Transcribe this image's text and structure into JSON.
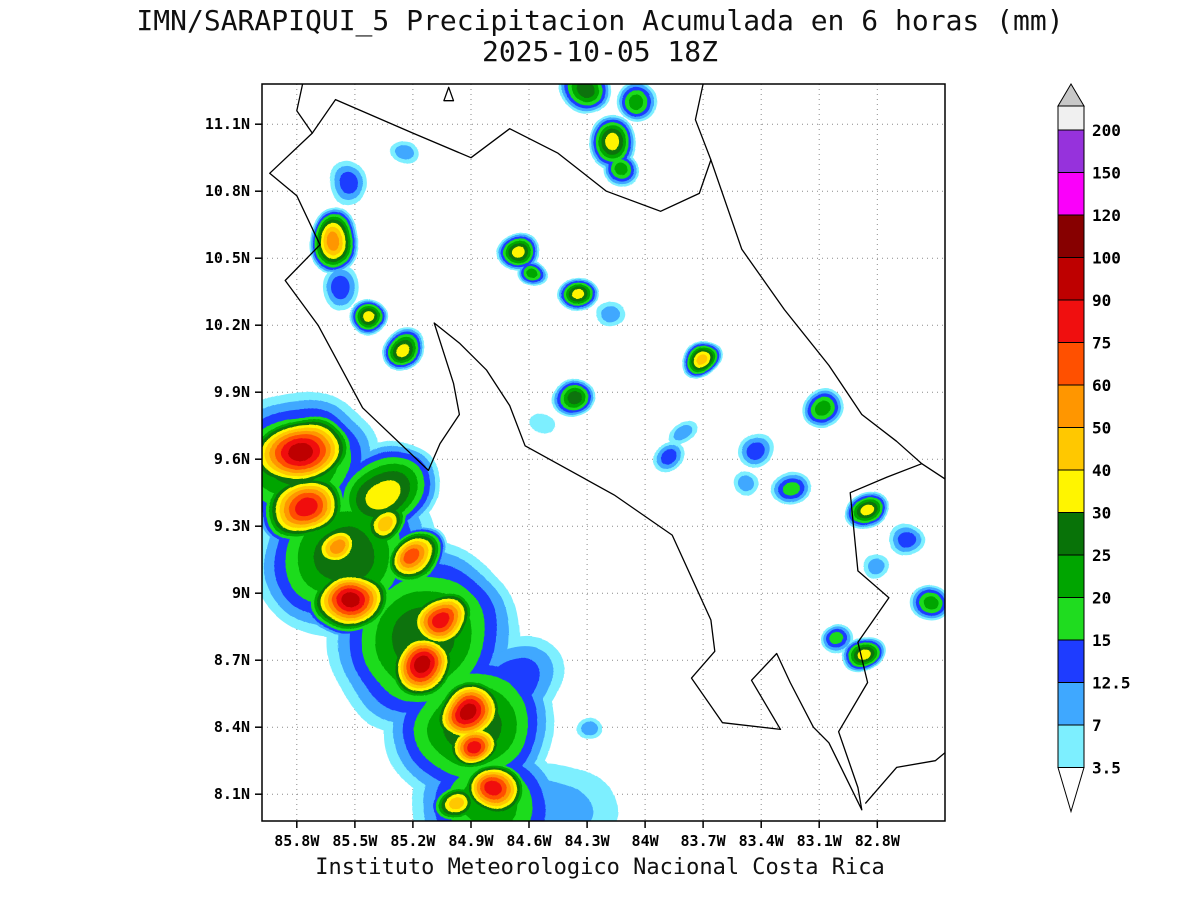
{
  "title": {
    "line1": "IMN/SARAPIQUI_5 Precipitacion Acumulada en 6 horas (mm)",
    "line2": "2025-10-05 18Z"
  },
  "footer": "Instituto Meteorologico Nacional Costa Rica",
  "axes": {
    "lat_tick_labels": [
      "11.1N",
      "10.8N",
      "10.5N",
      "10.2N",
      "9.9N",
      "9.6N",
      "9.3N",
      "9N",
      "8.7N",
      "8.4N",
      "8.1N"
    ],
    "lat_tick_values": [
      11.1,
      10.8,
      10.5,
      10.2,
      9.9,
      9.6,
      9.3,
      9.0,
      8.7,
      8.4,
      8.1
    ],
    "lon_tick_labels": [
      "85.8W",
      "85.5W",
      "85.2W",
      "84.9W",
      "84.6W",
      "84.3W",
      "84W",
      "83.7W",
      "83.4W",
      "83.1W",
      "82.8W"
    ],
    "lon_tick_values": [
      -85.8,
      -85.5,
      -85.2,
      -84.9,
      -84.6,
      -84.3,
      -84.0,
      -83.7,
      -83.4,
      -83.1,
      -82.8
    ],
    "lon_range": [
      -85.98,
      -82.45
    ],
    "lat_range": [
      7.98,
      11.28
    ],
    "grid": "dotted"
  },
  "colorbar": {
    "units": "mm",
    "over_color": "#C8C8C8",
    "under_color": "#FFFFFF",
    "levels": [
      {
        "value": 3.5,
        "label": "3.5",
        "color": "#7DEFFF"
      },
      {
        "value": 7,
        "label": "7",
        "color": "#3FA8FF"
      },
      {
        "value": 12.5,
        "label": "12.5",
        "color": "#1E3CFF"
      },
      {
        "value": 15,
        "label": "15",
        "color": "#1FDC1F"
      },
      {
        "value": 20,
        "label": "20",
        "color": "#00A500"
      },
      {
        "value": 25,
        "label": "25",
        "color": "#087308"
      },
      {
        "value": 30,
        "label": "30",
        "color": "#FFF500"
      },
      {
        "value": 40,
        "label": "40",
        "color": "#FFC800"
      },
      {
        "value": 50,
        "label": "50",
        "color": "#FF9600"
      },
      {
        "value": 60,
        "label": "60",
        "color": "#FF5000"
      },
      {
        "value": 75,
        "label": "75",
        "color": "#F00F0F"
      },
      {
        "value": 90,
        "label": "90",
        "color": "#BE0000"
      },
      {
        "value": 100,
        "label": "100",
        "color": "#870000"
      },
      {
        "value": 120,
        "label": "120",
        "color": "#FA00FA"
      },
      {
        "value": 150,
        "label": "150",
        "color": "#9632DC"
      },
      {
        "value": 200,
        "label": "200",
        "color": "#F0F0F0"
      }
    ]
  },
  "chart_data": {
    "type": "contour_map",
    "units": "mm",
    "cells_format": [
      "lon",
      "lat",
      "max_mm",
      "radius_deg",
      "aspect",
      "rotation_deg"
    ],
    "cells": [
      [
        -85.8,
        9.58,
        25,
        0.42,
        0.9,
        -20
      ],
      [
        -85.55,
        9.18,
        25,
        0.48,
        0.9,
        -30
      ],
      [
        -85.15,
        8.8,
        25,
        0.5,
        0.95,
        -35
      ],
      [
        -84.9,
        8.4,
        25,
        0.45,
        0.95,
        -30
      ],
      [
        -84.8,
        8.05,
        20,
        0.42,
        0.8,
        0
      ],
      [
        -84.5,
        8.03,
        7,
        0.35,
        0.7,
        0
      ],
      [
        -84.68,
        8.6,
        12.5,
        0.28,
        0.8,
        -40
      ],
      [
        -85.35,
        9.45,
        30,
        0.3,
        0.8,
        -30
      ],
      [
        -85.78,
        9.63,
        90,
        0.3,
        0.75,
        -15
      ],
      [
        -85.76,
        9.38,
        75,
        0.26,
        0.7,
        -20
      ],
      [
        -85.59,
        9.22,
        50,
        0.16,
        0.8,
        -30
      ],
      [
        -85.52,
        8.97,
        90,
        0.24,
        0.8,
        -20
      ],
      [
        -85.33,
        9.32,
        40,
        0.15,
        0.8,
        -40
      ],
      [
        -85.19,
        9.16,
        60,
        0.18,
        0.8,
        -35
      ],
      [
        -85.06,
        8.88,
        75,
        0.2,
        0.85,
        -30
      ],
      [
        -85.15,
        8.68,
        90,
        0.21,
        0.85,
        -20
      ],
      [
        -84.92,
        8.47,
        90,
        0.22,
        0.85,
        -30
      ],
      [
        -84.89,
        8.31,
        75,
        0.18,
        0.8,
        -20
      ],
      [
        -84.77,
        8.11,
        75,
        0.2,
        0.8,
        0
      ],
      [
        -84.98,
        8.04,
        40,
        0.16,
        0.7,
        0
      ],
      [
        -84.31,
        11.26,
        25,
        0.14,
        0.9,
        0
      ],
      [
        -84.03,
        11.2,
        20,
        0.11,
        0.9,
        20
      ],
      [
        -84.16,
        11.02,
        30,
        0.13,
        1.1,
        0
      ],
      [
        -84.12,
        10.9,
        20,
        0.09,
        1.0,
        0
      ],
      [
        -85.24,
        10.97,
        7,
        0.07,
        0.9,
        0
      ],
      [
        -85.54,
        10.83,
        12.5,
        0.1,
        1.3,
        0
      ],
      [
        -85.61,
        10.57,
        50,
        0.13,
        1.25,
        0
      ],
      [
        -85.57,
        10.37,
        12.5,
        0.09,
        1.3,
        0
      ],
      [
        -85.43,
        10.24,
        30,
        0.1,
        0.9,
        0
      ],
      [
        -84.65,
        10.52,
        30,
        0.12,
        0.85,
        0
      ],
      [
        -84.58,
        10.42,
        20,
        0.08,
        0.9,
        0
      ],
      [
        -84.36,
        10.33,
        30,
        0.11,
        0.8,
        -20
      ],
      [
        -84.18,
        10.26,
        7,
        0.08,
        0.8,
        0
      ],
      [
        -85.24,
        10.1,
        30,
        0.11,
        0.9,
        -30
      ],
      [
        -83.72,
        10.05,
        40,
        0.12,
        0.75,
        -35
      ],
      [
        -84.36,
        9.87,
        25,
        0.11,
        0.8,
        -20
      ],
      [
        -83.08,
        9.83,
        20,
        0.11,
        0.9,
        -30
      ],
      [
        -84.52,
        9.76,
        3.5,
        0.06,
        0.8,
        0
      ],
      [
        -83.8,
        9.7,
        7,
        0.08,
        0.7,
        -30
      ],
      [
        -83.43,
        9.64,
        12.5,
        0.1,
        0.8,
        -30
      ],
      [
        -83.86,
        9.6,
        12.5,
        0.08,
        0.9,
        0
      ],
      [
        -83.48,
        9.49,
        7,
        0.07,
        0.9,
        0
      ],
      [
        -83.25,
        9.47,
        15,
        0.1,
        0.9,
        0
      ],
      [
        -82.85,
        9.37,
        30,
        0.12,
        0.8,
        -30
      ],
      [
        -82.66,
        9.24,
        12.5,
        0.09,
        0.9,
        0
      ],
      [
        -82.81,
        9.12,
        7,
        0.07,
        0.9,
        0
      ],
      [
        -82.53,
        8.96,
        20,
        0.1,
        0.9,
        0
      ],
      [
        -83.0,
        8.79,
        15,
        0.09,
        0.85,
        -20
      ],
      [
        -82.86,
        8.73,
        30,
        0.12,
        0.7,
        -25
      ],
      [
        -84.29,
        8.39,
        7,
        0.06,
        0.9,
        0
      ]
    ],
    "coastline": {
      "main": [
        [
          -85.72,
          11.06
        ],
        [
          -85.6,
          11.21
        ],
        [
          -85.2,
          11.06
        ],
        [
          -84.9,
          10.95
        ],
        [
          -84.7,
          11.08
        ],
        [
          -84.45,
          10.97
        ],
        [
          -84.2,
          10.8
        ],
        [
          -83.92,
          10.71
        ],
        [
          -83.72,
          10.79
        ],
        [
          -83.66,
          10.94
        ],
        [
          -83.5,
          10.54
        ],
        [
          -83.28,
          10.27
        ],
        [
          -83.05,
          10.02
        ],
        [
          -82.88,
          9.8
        ],
        [
          -82.7,
          9.68
        ],
        [
          -82.57,
          9.58
        ],
        [
          -82.75,
          9.52
        ],
        [
          -82.94,
          9.45
        ],
        [
          -82.9,
          9.1
        ],
        [
          -82.74,
          8.98
        ],
        [
          -82.9,
          8.78
        ],
        [
          -82.85,
          8.6
        ],
        [
          -83.0,
          8.38
        ],
        [
          -82.9,
          8.13
        ],
        [
          -82.88,
          8.03
        ],
        [
          -83.05,
          8.33
        ],
        [
          -83.13,
          8.4
        ],
        [
          -83.25,
          8.6
        ],
        [
          -83.32,
          8.73
        ],
        [
          -83.45,
          8.61
        ],
        [
          -83.3,
          8.39
        ],
        [
          -83.6,
          8.42
        ],
        [
          -83.76,
          8.62
        ],
        [
          -83.64,
          8.74
        ],
        [
          -83.66,
          8.88
        ],
        [
          -83.86,
          9.26
        ],
        [
          -84.16,
          9.44
        ],
        [
          -84.62,
          9.66
        ],
        [
          -84.7,
          9.84
        ],
        [
          -84.82,
          10.0
        ],
        [
          -84.96,
          10.12
        ],
        [
          -85.09,
          10.21
        ],
        [
          -84.99,
          9.94
        ],
        [
          -84.96,
          9.8
        ],
        [
          -85.06,
          9.67
        ],
        [
          -85.12,
          9.55
        ],
        [
          -85.46,
          9.83
        ],
        [
          -85.69,
          10.2
        ],
        [
          -85.86,
          10.4
        ],
        [
          -85.68,
          10.56
        ],
        [
          -85.8,
          10.78
        ],
        [
          -85.94,
          10.88
        ],
        [
          -85.72,
          11.06
        ]
      ],
      "extra": [
        [
          [
            -85.72,
            11.06
          ],
          [
            -85.8,
            11.16
          ],
          [
            -85.77,
            11.28
          ]
        ],
        [
          [
            -83.66,
            10.94
          ],
          [
            -83.74,
            11.12
          ],
          [
            -83.7,
            11.28
          ]
        ],
        [
          [
            -82.57,
            9.58
          ],
          [
            -82.43,
            9.5
          ]
        ],
        [
          [
            -82.86,
            8.06
          ],
          [
            -82.7,
            8.22
          ],
          [
            -82.5,
            8.25
          ],
          [
            -82.43,
            8.3
          ]
        ]
      ],
      "island": [
        [
          -85.04,
          11.205
        ],
        [
          -84.99,
          11.205
        ],
        [
          -85.015,
          11.265
        ],
        [
          -85.04,
          11.205
        ]
      ]
    }
  }
}
